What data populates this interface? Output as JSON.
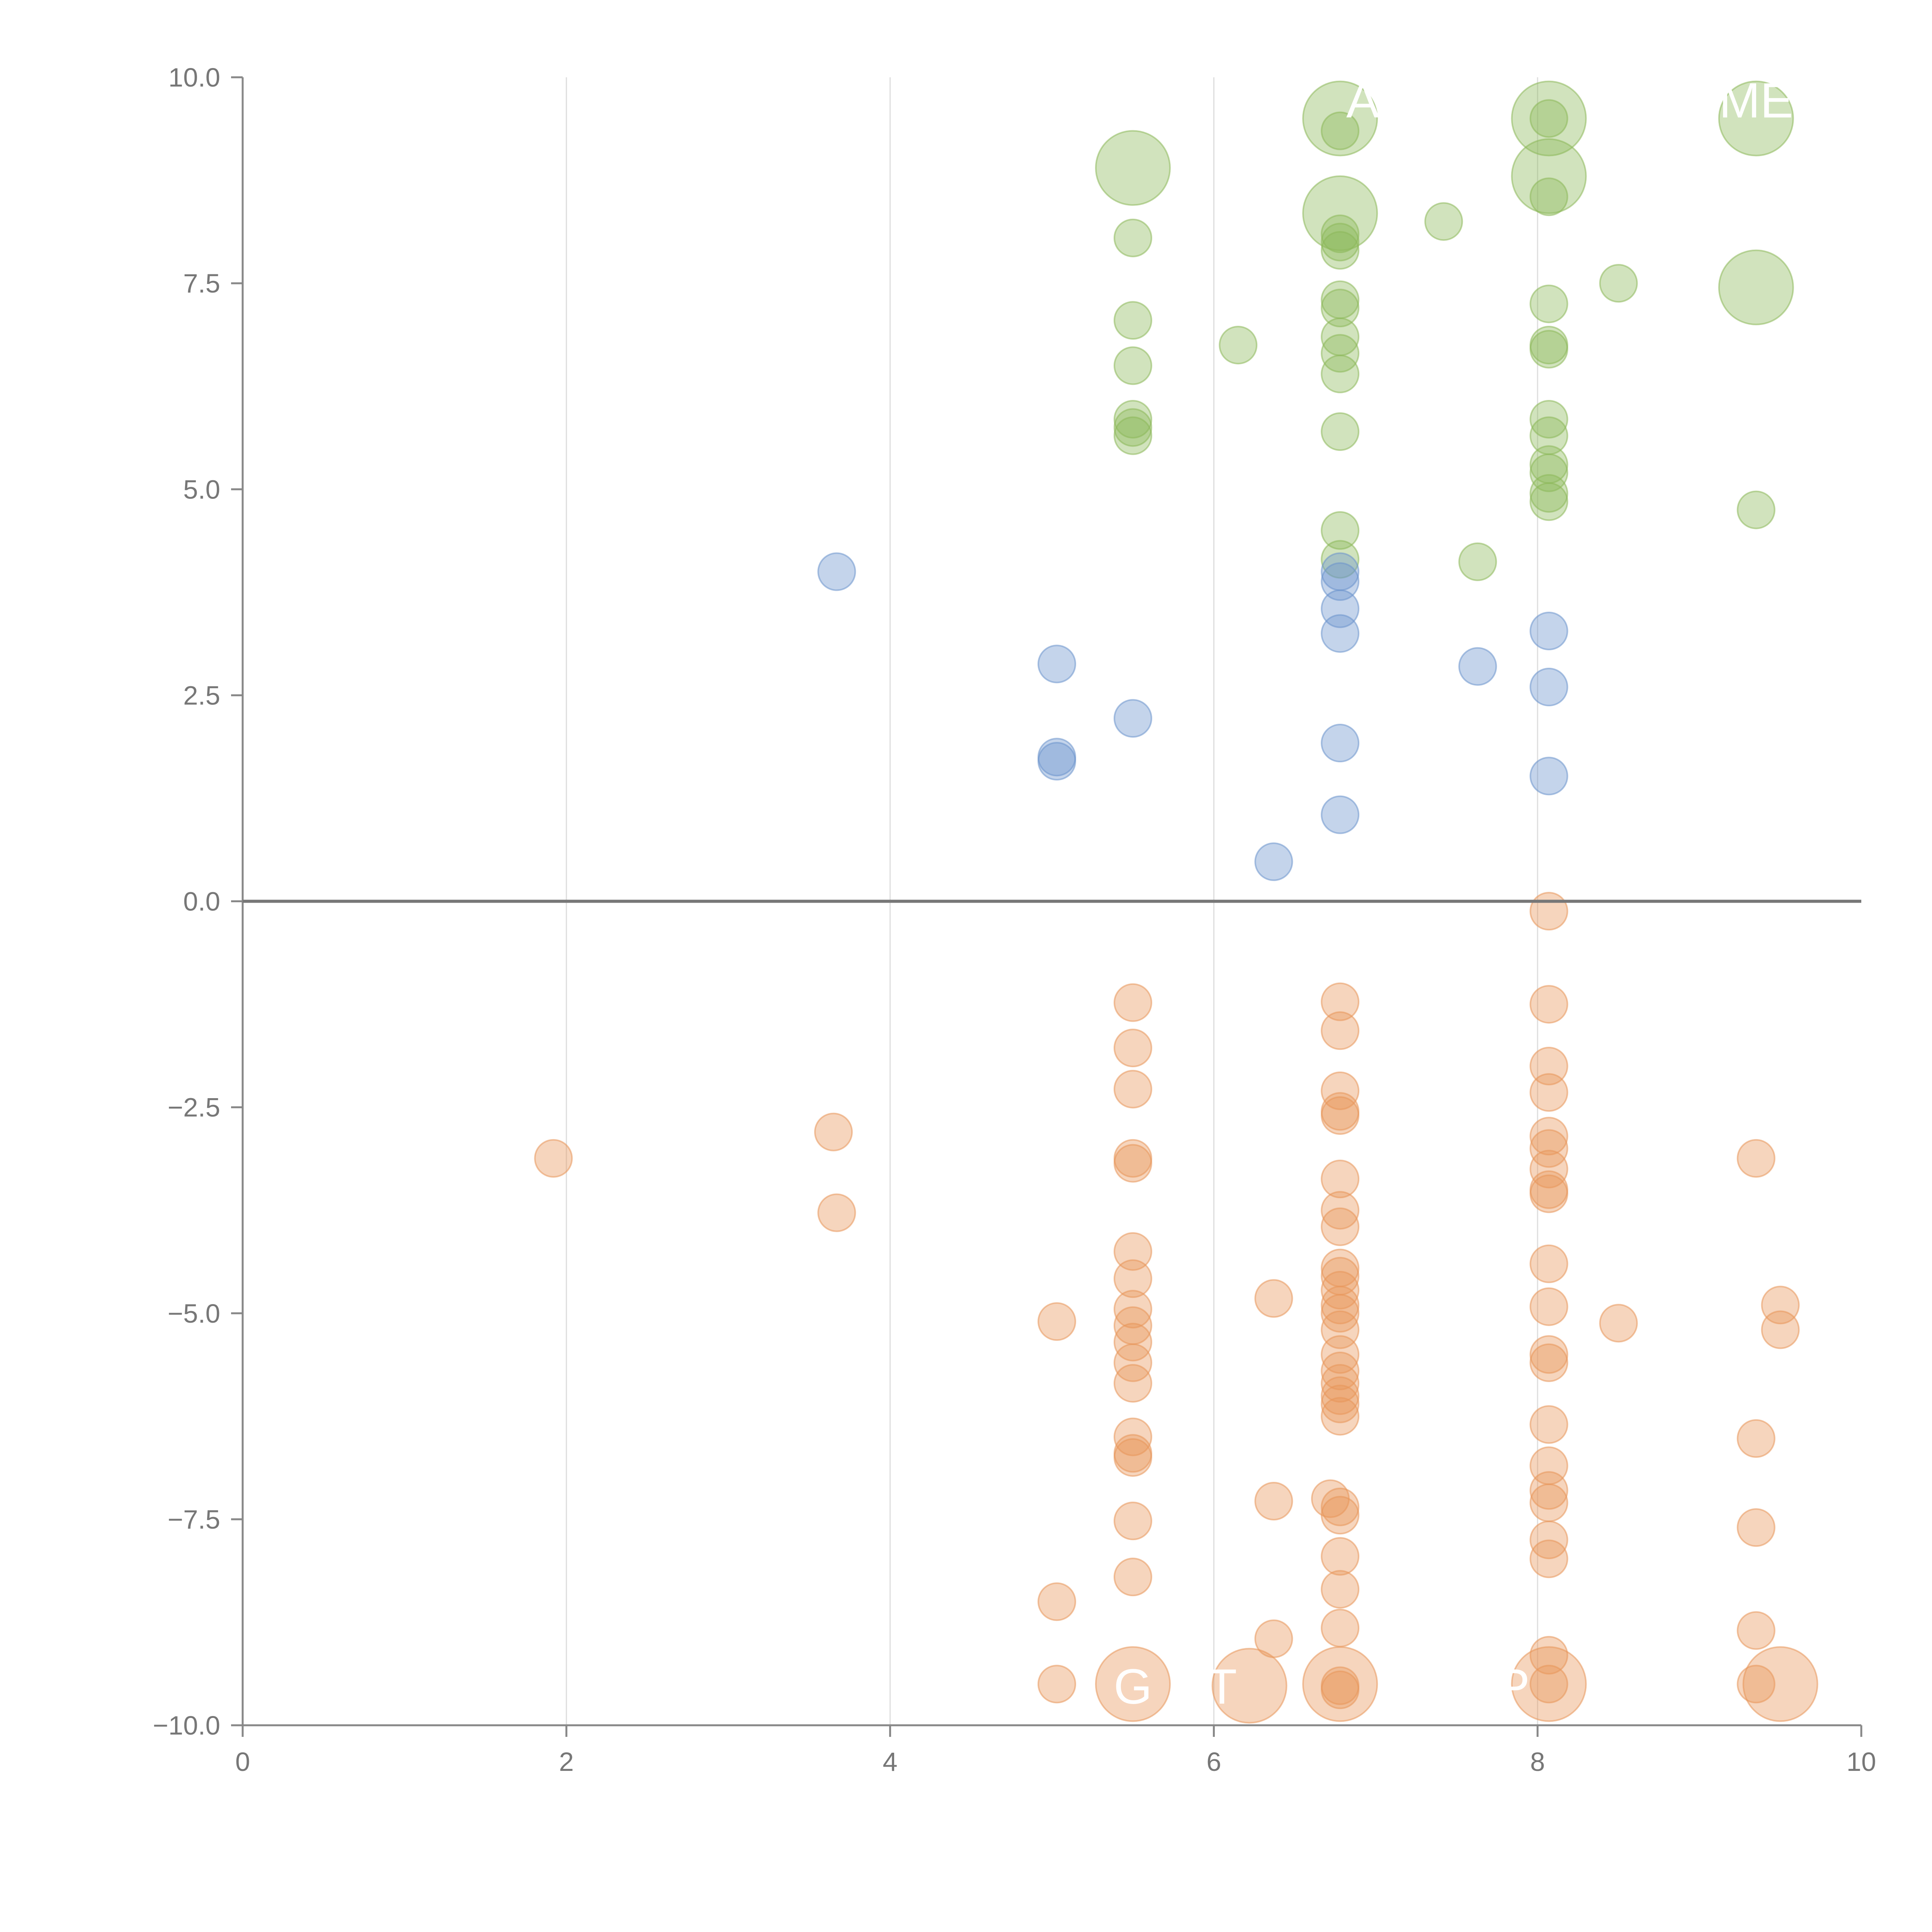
{
  "chart_data": {
    "type": "scatter",
    "title": "",
    "xlabel": "",
    "ylabel": "",
    "xlim": [
      0,
      10
    ],
    "ylim": [
      -10,
      10
    ],
    "x_ticks": [
      "0",
      "2",
      "4",
      "6",
      "8",
      "10"
    ],
    "y_ticks": [
      "10.0",
      "7.5",
      "5.0",
      "2.5",
      "0.0",
      "−2.5",
      "−5.0",
      "−7.5",
      "−10.0"
    ],
    "x_tick_values": [
      0,
      2,
      4,
      6,
      8,
      10
    ],
    "y_tick_values": [
      10,
      7.5,
      5,
      2.5,
      0,
      -2.5,
      -5,
      -7.5,
      -10
    ],
    "grid": {
      "vertical": true,
      "horizontal": false
    },
    "zero_line": true,
    "series": [
      {
        "name": "green",
        "color": "#8db85a",
        "points": [
          [
            5.5,
            8.9,
            3
          ],
          [
            5.5,
            8.05,
            1
          ],
          [
            5.5,
            7.05,
            1
          ],
          [
            5.5,
            6.5,
            1
          ],
          [
            5.5,
            5.85,
            1
          ],
          [
            5.5,
            5.75,
            1
          ],
          [
            5.5,
            5.65,
            1
          ],
          [
            6.15,
            6.75,
            1
          ],
          [
            6.78,
            9.5,
            3
          ],
          [
            6.78,
            9.35,
            1
          ],
          [
            6.78,
            8.35,
            3
          ],
          [
            6.78,
            8.1,
            1
          ],
          [
            6.78,
            8.0,
            1
          ],
          [
            6.78,
            7.9,
            1
          ],
          [
            6.78,
            7.3,
            1
          ],
          [
            6.78,
            7.2,
            1
          ],
          [
            6.78,
            6.85,
            1
          ],
          [
            6.78,
            6.65,
            1
          ],
          [
            6.78,
            6.4,
            1
          ],
          [
            6.78,
            5.7,
            1
          ],
          [
            6.78,
            4.5,
            1
          ],
          [
            6.78,
            4.15,
            1
          ],
          [
            7.42,
            8.25,
            1
          ],
          [
            7.63,
            4.12,
            1
          ],
          [
            8.07,
            9.5,
            3
          ],
          [
            8.07,
            9.5,
            1
          ],
          [
            8.07,
            8.8,
            3
          ],
          [
            8.07,
            8.55,
            1
          ],
          [
            8.07,
            7.25,
            1
          ],
          [
            8.07,
            6.75,
            1
          ],
          [
            8.07,
            6.7,
            1
          ],
          [
            8.07,
            5.85,
            1
          ],
          [
            8.07,
            5.65,
            1
          ],
          [
            8.07,
            5.3,
            1
          ],
          [
            8.07,
            5.2,
            1
          ],
          [
            8.07,
            4.95,
            1
          ],
          [
            8.07,
            4.85,
            1
          ],
          [
            8.5,
            7.5,
            1
          ],
          [
            9.35,
            9.5,
            3
          ],
          [
            9.35,
            7.45,
            3
          ],
          [
            9.35,
            4.75,
            1
          ]
        ]
      },
      {
        "name": "blue",
        "color": "#6b93cc",
        "points": [
          [
            3.67,
            4.0,
            1
          ],
          [
            5.03,
            2.88,
            1
          ],
          [
            5.03,
            1.75,
            1
          ],
          [
            5.03,
            1.7,
            1
          ],
          [
            5.5,
            2.22,
            1
          ],
          [
            6.37,
            0.48,
            1
          ],
          [
            6.78,
            4.0,
            1
          ],
          [
            6.78,
            3.88,
            1
          ],
          [
            6.78,
            3.55,
            1
          ],
          [
            6.78,
            3.25,
            1
          ],
          [
            6.78,
            1.92,
            1
          ],
          [
            6.78,
            1.05,
            1
          ],
          [
            7.63,
            2.85,
            1
          ],
          [
            8.07,
            3.28,
            1
          ],
          [
            8.07,
            2.6,
            1
          ],
          [
            8.07,
            1.52,
            1
          ]
        ]
      },
      {
        "name": "orange",
        "color": "#e8955a",
        "points": [
          [
            1.92,
            -3.12,
            1
          ],
          [
            3.65,
            -2.8,
            1
          ],
          [
            3.67,
            -3.78,
            1
          ],
          [
            5.03,
            -5.1,
            1
          ],
          [
            5.03,
            -8.5,
            1
          ],
          [
            5.03,
            -9.5,
            1
          ],
          [
            5.5,
            -1.23,
            1
          ],
          [
            5.5,
            -1.78,
            1
          ],
          [
            5.5,
            -2.28,
            1
          ],
          [
            5.5,
            -3.12,
            1
          ],
          [
            5.5,
            -3.18,
            1
          ],
          [
            5.5,
            -4.25,
            1
          ],
          [
            5.5,
            -4.58,
            1
          ],
          [
            5.5,
            -4.95,
            1
          ],
          [
            5.5,
            -5.15,
            1
          ],
          [
            5.5,
            -5.35,
            1
          ],
          [
            5.5,
            -5.6,
            1
          ],
          [
            5.5,
            -5.85,
            1
          ],
          [
            5.5,
            -6.5,
            1
          ],
          [
            5.5,
            -6.7,
            1
          ],
          [
            5.5,
            -6.75,
            1
          ],
          [
            5.5,
            -7.52,
            1
          ],
          [
            5.5,
            -8.2,
            1
          ],
          [
            5.5,
            -9.5,
            3
          ],
          [
            6.22,
            -9.52,
            3
          ],
          [
            6.37,
            -4.82,
            1
          ],
          [
            6.37,
            -7.28,
            1
          ],
          [
            6.37,
            -8.95,
            1
          ],
          [
            6.72,
            -7.25,
            1
          ],
          [
            6.78,
            -1.22,
            1
          ],
          [
            6.78,
            -1.57,
            1
          ],
          [
            6.78,
            -2.3,
            1
          ],
          [
            6.78,
            -2.55,
            1
          ],
          [
            6.78,
            -2.6,
            1
          ],
          [
            6.78,
            -3.37,
            1
          ],
          [
            6.78,
            -3.75,
            1
          ],
          [
            6.78,
            -3.95,
            1
          ],
          [
            6.78,
            -4.45,
            1
          ],
          [
            6.78,
            -4.55,
            1
          ],
          [
            6.78,
            -4.72,
            1
          ],
          [
            6.78,
            -4.9,
            1
          ],
          [
            6.78,
            -5.0,
            1
          ],
          [
            6.78,
            -5.2,
            1
          ],
          [
            6.78,
            -5.5,
            1
          ],
          [
            6.78,
            -5.7,
            1
          ],
          [
            6.78,
            -5.85,
            1
          ],
          [
            6.78,
            -6.0,
            1
          ],
          [
            6.78,
            -6.1,
            1
          ],
          [
            6.78,
            -6.25,
            1
          ],
          [
            6.78,
            -7.35,
            1
          ],
          [
            6.78,
            -7.45,
            1
          ],
          [
            6.78,
            -7.95,
            1
          ],
          [
            6.78,
            -8.35,
            1
          ],
          [
            6.78,
            -8.82,
            1
          ],
          [
            6.78,
            -9.5,
            3
          ],
          [
            6.78,
            -9.52,
            1
          ],
          [
            6.78,
            -9.57,
            1
          ],
          [
            8.07,
            -0.12,
            1
          ],
          [
            8.07,
            -1.25,
            1
          ],
          [
            8.07,
            -2.0,
            1
          ],
          [
            8.07,
            -2.32,
            1
          ],
          [
            8.07,
            -2.85,
            1
          ],
          [
            8.07,
            -3.0,
            1
          ],
          [
            8.07,
            -3.25,
            1
          ],
          [
            8.07,
            -3.5,
            1
          ],
          [
            8.07,
            -3.55,
            1
          ],
          [
            8.07,
            -4.4,
            1
          ],
          [
            8.07,
            -4.92,
            1
          ],
          [
            8.07,
            -5.5,
            1
          ],
          [
            8.07,
            -5.6,
            1
          ],
          [
            8.07,
            -6.35,
            1
          ],
          [
            8.07,
            -6.85,
            1
          ],
          [
            8.07,
            -7.15,
            1
          ],
          [
            8.07,
            -7.3,
            1
          ],
          [
            8.07,
            -7.75,
            1
          ],
          [
            8.07,
            -7.98,
            1
          ],
          [
            8.07,
            -9.15,
            1
          ],
          [
            8.07,
            -9.5,
            3
          ],
          [
            8.07,
            -9.5,
            1
          ],
          [
            8.5,
            -5.12,
            1
          ],
          [
            9.35,
            -3.12,
            1
          ],
          [
            9.35,
            -6.52,
            1
          ],
          [
            9.35,
            -7.6,
            1
          ],
          [
            9.35,
            -8.85,
            1
          ],
          [
            9.35,
            -9.5,
            1
          ],
          [
            9.5,
            -4.9,
            1
          ],
          [
            9.5,
            -5.2,
            1
          ],
          [
            9.5,
            -9.5,
            3
          ]
        ]
      }
    ],
    "annotations": [
      {
        "text": "A",
        "x": 6.92,
        "y": 9.7
      },
      {
        "text": "ME",
        "x": 9.35,
        "y": 9.7
      },
      {
        "text": "G",
        "x": 5.5,
        "y": -9.55
      },
      {
        "text": "T",
        "x": 6.05,
        "y": -9.55
      },
      {
        "text": "P",
        "x": 7.85,
        "y": -9.55
      }
    ]
  }
}
